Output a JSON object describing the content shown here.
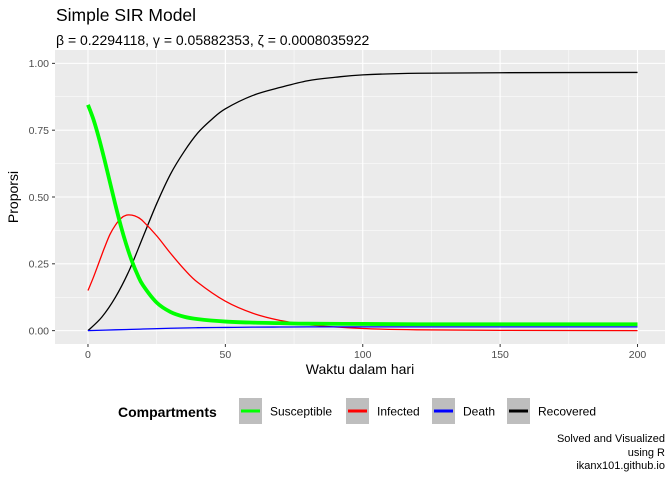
{
  "title": "Simple SIR Model",
  "subtitle": "β = 0.2294118,  γ = 0.05882353,  ζ = 0.0008035922",
  "caption": [
    "Solved and Visualized",
    "using R",
    "ikanx101.github.io"
  ],
  "colors": {
    "panel_background": "#EBEBEB",
    "grid": "#FFFFFF",
    "legend_key_background": "#BEBEBE"
  },
  "chart_data": {
    "type": "line",
    "title": "Simple SIR Model",
    "subtitle": "β = 0.2294118,  γ = 0.05882353,  ζ = 0.0008035922",
    "xlabel": "Waktu dalam hari",
    "ylabel": "Proporsi",
    "xlim": [
      -12,
      210
    ],
    "ylim": [
      -0.05,
      1.05
    ],
    "x_ticks": [
      0,
      50,
      100,
      150,
      200
    ],
    "x_tick_labels": [
      "0",
      "50",
      "100",
      "150",
      "200"
    ],
    "y_ticks": [
      0,
      0.25,
      0.5,
      0.75,
      1
    ],
    "y_tick_labels": [
      "0.00",
      "0.25",
      "0.50",
      "0.75",
      "1.00"
    ],
    "grid": true,
    "legend": {
      "title": "Compartments",
      "position": "bottom",
      "entries": [
        "Susceptible",
        "Infected",
        "Death",
        "Recovered"
      ]
    },
    "series": [
      {
        "name": "Susceptible",
        "color": "#00FF00",
        "line_weight": "thick",
        "x": [
          0,
          2,
          4,
          6,
          8,
          10,
          12,
          14,
          16,
          18,
          20,
          25,
          30,
          35,
          40,
          50,
          60,
          70,
          80,
          100,
          120,
          150,
          200
        ],
        "y": [
          0.845,
          0.79,
          0.72,
          0.64,
          0.555,
          0.47,
          0.39,
          0.32,
          0.26,
          0.21,
          0.17,
          0.105,
          0.07,
          0.052,
          0.043,
          0.034,
          0.03,
          0.028,
          0.026,
          0.025,
          0.024,
          0.024,
          0.024
        ]
      },
      {
        "name": "Infected",
        "color": "#FF0000",
        "line_weight": "normal",
        "x": [
          0,
          2,
          4,
          6,
          8,
          10,
          12,
          14,
          16,
          18,
          20,
          25,
          30,
          35,
          40,
          50,
          60,
          70,
          80,
          100,
          120,
          150,
          200
        ],
        "y": [
          0.15,
          0.2,
          0.255,
          0.31,
          0.36,
          0.395,
          0.42,
          0.432,
          0.432,
          0.425,
          0.41,
          0.355,
          0.29,
          0.23,
          0.18,
          0.11,
          0.065,
          0.038,
          0.022,
          0.008,
          0.003,
          0.001,
          0.0
        ]
      },
      {
        "name": "Death",
        "color": "#0000FF",
        "line_weight": "normal",
        "x": [
          0,
          10,
          20,
          30,
          40,
          50,
          60,
          70,
          80,
          100,
          120,
          150,
          200
        ],
        "y": [
          0.0,
          0.003,
          0.006,
          0.009,
          0.011,
          0.012,
          0.013,
          0.0135,
          0.014,
          0.014,
          0.014,
          0.014,
          0.014
        ]
      },
      {
        "name": "Recovered",
        "color": "#000000",
        "line_weight": "normal",
        "x": [
          0,
          5,
          10,
          15,
          20,
          25,
          30,
          35,
          40,
          45,
          50,
          60,
          70,
          80,
          90,
          100,
          120,
          150,
          200
        ],
        "y": [
          0.0,
          0.05,
          0.125,
          0.225,
          0.35,
          0.475,
          0.585,
          0.67,
          0.74,
          0.79,
          0.83,
          0.88,
          0.91,
          0.935,
          0.948,
          0.957,
          0.963,
          0.965,
          0.966
        ]
      }
    ]
  }
}
